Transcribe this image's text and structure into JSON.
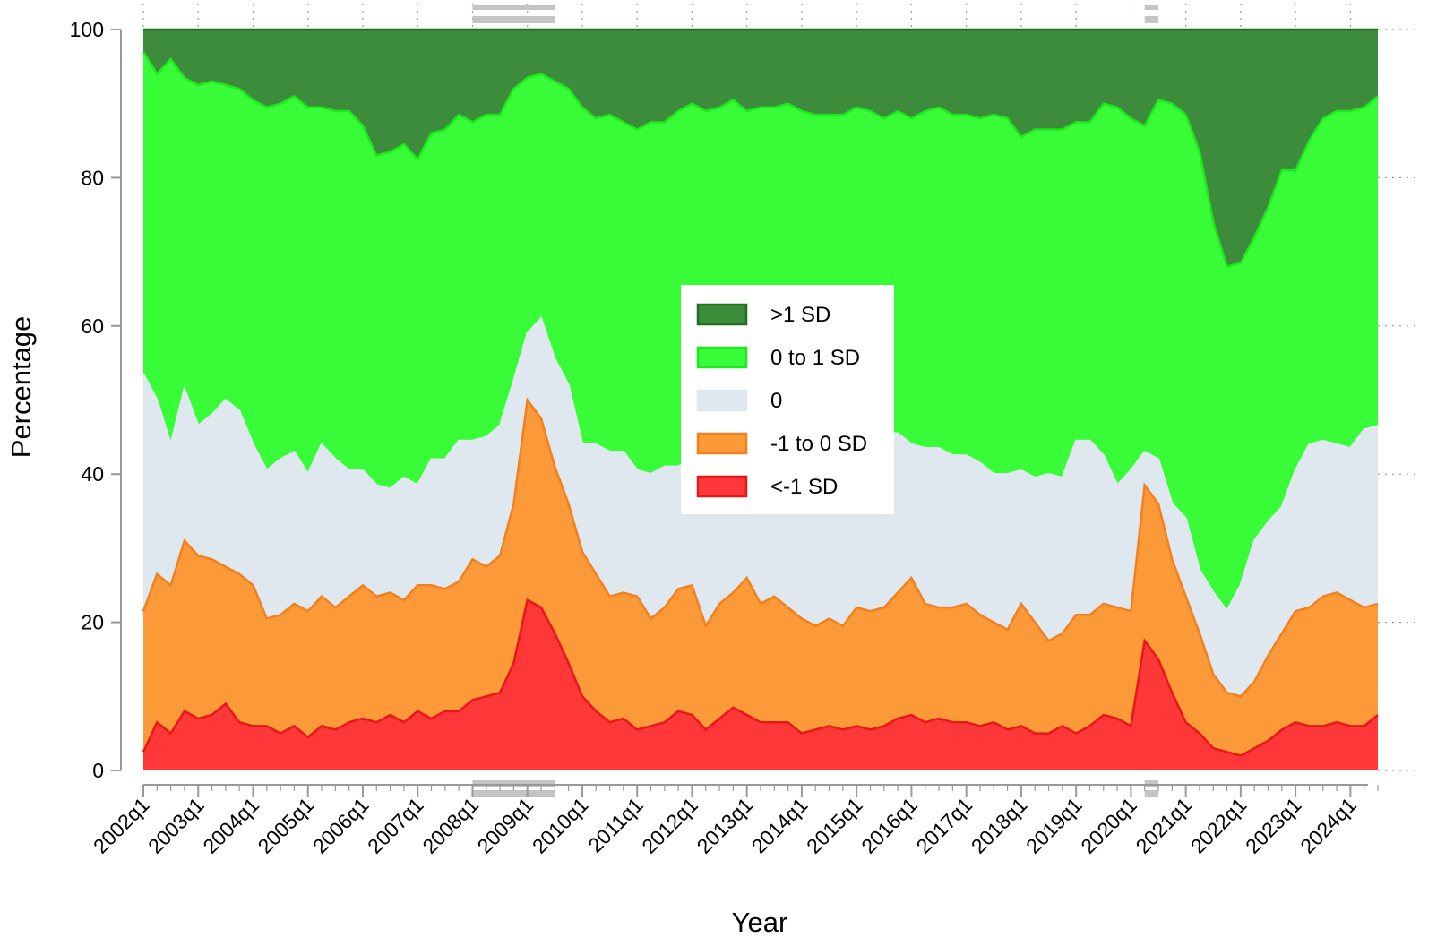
{
  "chart_data": {
    "type": "area",
    "stacked": true,
    "title": "",
    "xlabel": "Year",
    "ylabel": "Percentage",
    "ylim": [
      0,
      100
    ],
    "yticks": [
      0,
      20,
      40,
      60,
      80,
      100
    ],
    "x_ticklabels": [
      "2002q1",
      "2003q1",
      "2004q1",
      "2005q1",
      "2006q1",
      "2007q1",
      "2008q1",
      "2009q1",
      "2010q1",
      "2011q1",
      "2012q1",
      "2013q1",
      "2014q1",
      "2015q1",
      "2016q1",
      "2017q1",
      "2018q1",
      "2019q1",
      "2020q1",
      "2021q1",
      "2022q1",
      "2023q1",
      "2024q1"
    ],
    "legend_position": "center",
    "recession_bands": [
      {
        "start_quarter_index": 24,
        "end_quarter_index": 30,
        "label": ""
      },
      {
        "start_quarter_index": 73,
        "end_quarter_index": 74,
        "label": ""
      }
    ],
    "series": [
      {
        "name": "<-1 SD",
        "color": "#fe3838",
        "edge": "#e81818",
        "cumulative": [
          2.5,
          6.5,
          5.0,
          8.0,
          7.0,
          7.5,
          9.0,
          6.5,
          6.0,
          6.0,
          5.0,
          6.0,
          4.5,
          6.0,
          5.5,
          6.5,
          7.0,
          6.5,
          7.5,
          6.5,
          8.0,
          7.0,
          8.0,
          8.0,
          9.5,
          10.0,
          10.5,
          14.5,
          23.0,
          22.0,
          18.5,
          14.5,
          10.0,
          8.0,
          6.5,
          7.0,
          5.5,
          6.0,
          6.5,
          8.0,
          7.5,
          5.5,
          7.0,
          8.5,
          7.5,
          6.5,
          6.5,
          6.5,
          5.0,
          5.5,
          6.0,
          5.5,
          6.0,
          5.5,
          6.0,
          7.0,
          7.5,
          6.5,
          7.0,
          6.5,
          6.5,
          6.0,
          6.5,
          5.5,
          6.0,
          5.0,
          5.0,
          6.0,
          5.0,
          6.0,
          7.5,
          7.0,
          6.0,
          17.5,
          15.0,
          10.5,
          6.5,
          5.0,
          3.0,
          2.5,
          2.0,
          3.0,
          4.0,
          5.5,
          6.5,
          6.0,
          6.0,
          6.5,
          6.0,
          6.0,
          7.5
        ]
      },
      {
        "name": "-1 to 0 SD",
        "color": "#fc9938",
        "edge": "#f08020",
        "cumulative": [
          21.5,
          26.5,
          25.0,
          31.0,
          29.0,
          28.5,
          27.5,
          26.5,
          25.0,
          20.5,
          21.0,
          22.5,
          21.5,
          23.5,
          22.0,
          23.5,
          25.0,
          23.5,
          24.0,
          23.0,
          25.0,
          25.0,
          24.5,
          25.5,
          28.5,
          27.5,
          29.0,
          36.0,
          50.0,
          47.5,
          41.0,
          36.0,
          29.5,
          26.5,
          23.5,
          24.0,
          23.5,
          20.5,
          22.0,
          24.5,
          25.0,
          19.5,
          22.5,
          24.0,
          26.0,
          22.5,
          23.5,
          22.0,
          20.5,
          19.5,
          20.5,
          19.5,
          22.0,
          21.5,
          22.0,
          24.0,
          26.0,
          22.5,
          22.0,
          22.0,
          22.5,
          21.0,
          20.0,
          19.0,
          22.5,
          20.0,
          17.5,
          18.5,
          21.0,
          21.0,
          22.5,
          22.0,
          21.5,
          38.5,
          36.0,
          28.5,
          23.5,
          18.5,
          13.0,
          10.5,
          10.0,
          12.0,
          15.5,
          18.5,
          21.5,
          22.0,
          23.5,
          24.0,
          23.0,
          22.0,
          22.5
        ]
      },
      {
        "name": "0",
        "color": "#dfe8ee",
        "edge": "#dfe8ee",
        "cumulative": [
          53.5,
          50.0,
          44.0,
          51.5,
          46.5,
          48.0,
          50.0,
          48.5,
          44.0,
          40.5,
          42.0,
          43.0,
          40.0,
          44.0,
          42.0,
          40.5,
          40.5,
          38.5,
          38.0,
          39.5,
          38.5,
          42.0,
          42.0,
          44.5,
          44.5,
          45.0,
          46.5,
          52.5,
          59.0,
          61.0,
          55.5,
          52.0,
          44.0,
          44.0,
          43.0,
          43.0,
          40.5,
          40.0,
          41.0,
          41.0,
          42.0,
          41.0,
          42.5,
          43.0,
          42.0,
          42.0,
          42.0,
          42.0,
          41.0,
          41.5,
          42.5,
          42.0,
          43.5,
          43.0,
          45.5,
          45.5,
          44.0,
          43.5,
          43.5,
          42.5,
          42.5,
          41.5,
          40.0,
          40.0,
          40.5,
          39.5,
          40.0,
          39.5,
          44.5,
          44.5,
          42.5,
          38.5,
          40.5,
          43.0,
          42.0,
          36.0,
          34.0,
          27.0,
          24.0,
          21.5,
          25.0,
          31.0,
          33.5,
          35.5,
          40.5,
          44.0,
          44.5,
          44.0,
          43.5,
          46.0,
          46.5
        ]
      },
      {
        "name": "0 to 1 SD",
        "color": "#37fc37",
        "edge": "#1ee81e",
        "cumulative": [
          97.0,
          94.0,
          96.0,
          93.5,
          92.5,
          93.0,
          92.5,
          92.0,
          90.5,
          89.5,
          90.0,
          91.0,
          89.5,
          89.5,
          89.0,
          89.0,
          87.0,
          83.0,
          83.5,
          84.5,
          82.5,
          86.0,
          86.5,
          88.5,
          87.5,
          88.5,
          88.5,
          92.0,
          93.5,
          94.0,
          93.0,
          92.0,
          89.5,
          88.0,
          88.5,
          87.5,
          86.5,
          87.5,
          87.5,
          89.0,
          90.0,
          89.0,
          89.5,
          90.5,
          89.0,
          89.5,
          89.5,
          90.0,
          89.0,
          88.5,
          88.5,
          88.5,
          89.5,
          89.0,
          88.0,
          89.0,
          88.0,
          89.0,
          89.5,
          88.5,
          88.5,
          88.0,
          88.5,
          88.0,
          85.5,
          86.5,
          86.5,
          86.5,
          87.5,
          87.5,
          90.0,
          89.5,
          88.0,
          87.0,
          90.5,
          90.0,
          88.5,
          83.5,
          74.0,
          68.0,
          68.5,
          72.0,
          76.0,
          81.0,
          81.0,
          85.0,
          88.0,
          89.0,
          89.0,
          89.5,
          91.0
        ]
      },
      {
        "name": ">1 SD",
        "color": "#3c8c3c",
        "edge": "#206e20",
        "cumulative": [
          100,
          100,
          100,
          100,
          100,
          100,
          100,
          100,
          100,
          100,
          100,
          100,
          100,
          100,
          100,
          100,
          100,
          100,
          100,
          100,
          100,
          100,
          100,
          100,
          100,
          100,
          100,
          100,
          100,
          100,
          100,
          100,
          100,
          100,
          100,
          100,
          100,
          100,
          100,
          100,
          100,
          100,
          100,
          100,
          100,
          100,
          100,
          100,
          100,
          100,
          100,
          100,
          100,
          100,
          100,
          100,
          100,
          100,
          100,
          100,
          100,
          100,
          100,
          100,
          100,
          100,
          100,
          100,
          100,
          100,
          100,
          100,
          100,
          100,
          100,
          100,
          100,
          100,
          100,
          100,
          100,
          100,
          100,
          100,
          100,
          100,
          100,
          100,
          100,
          100,
          100
        ]
      }
    ]
  }
}
